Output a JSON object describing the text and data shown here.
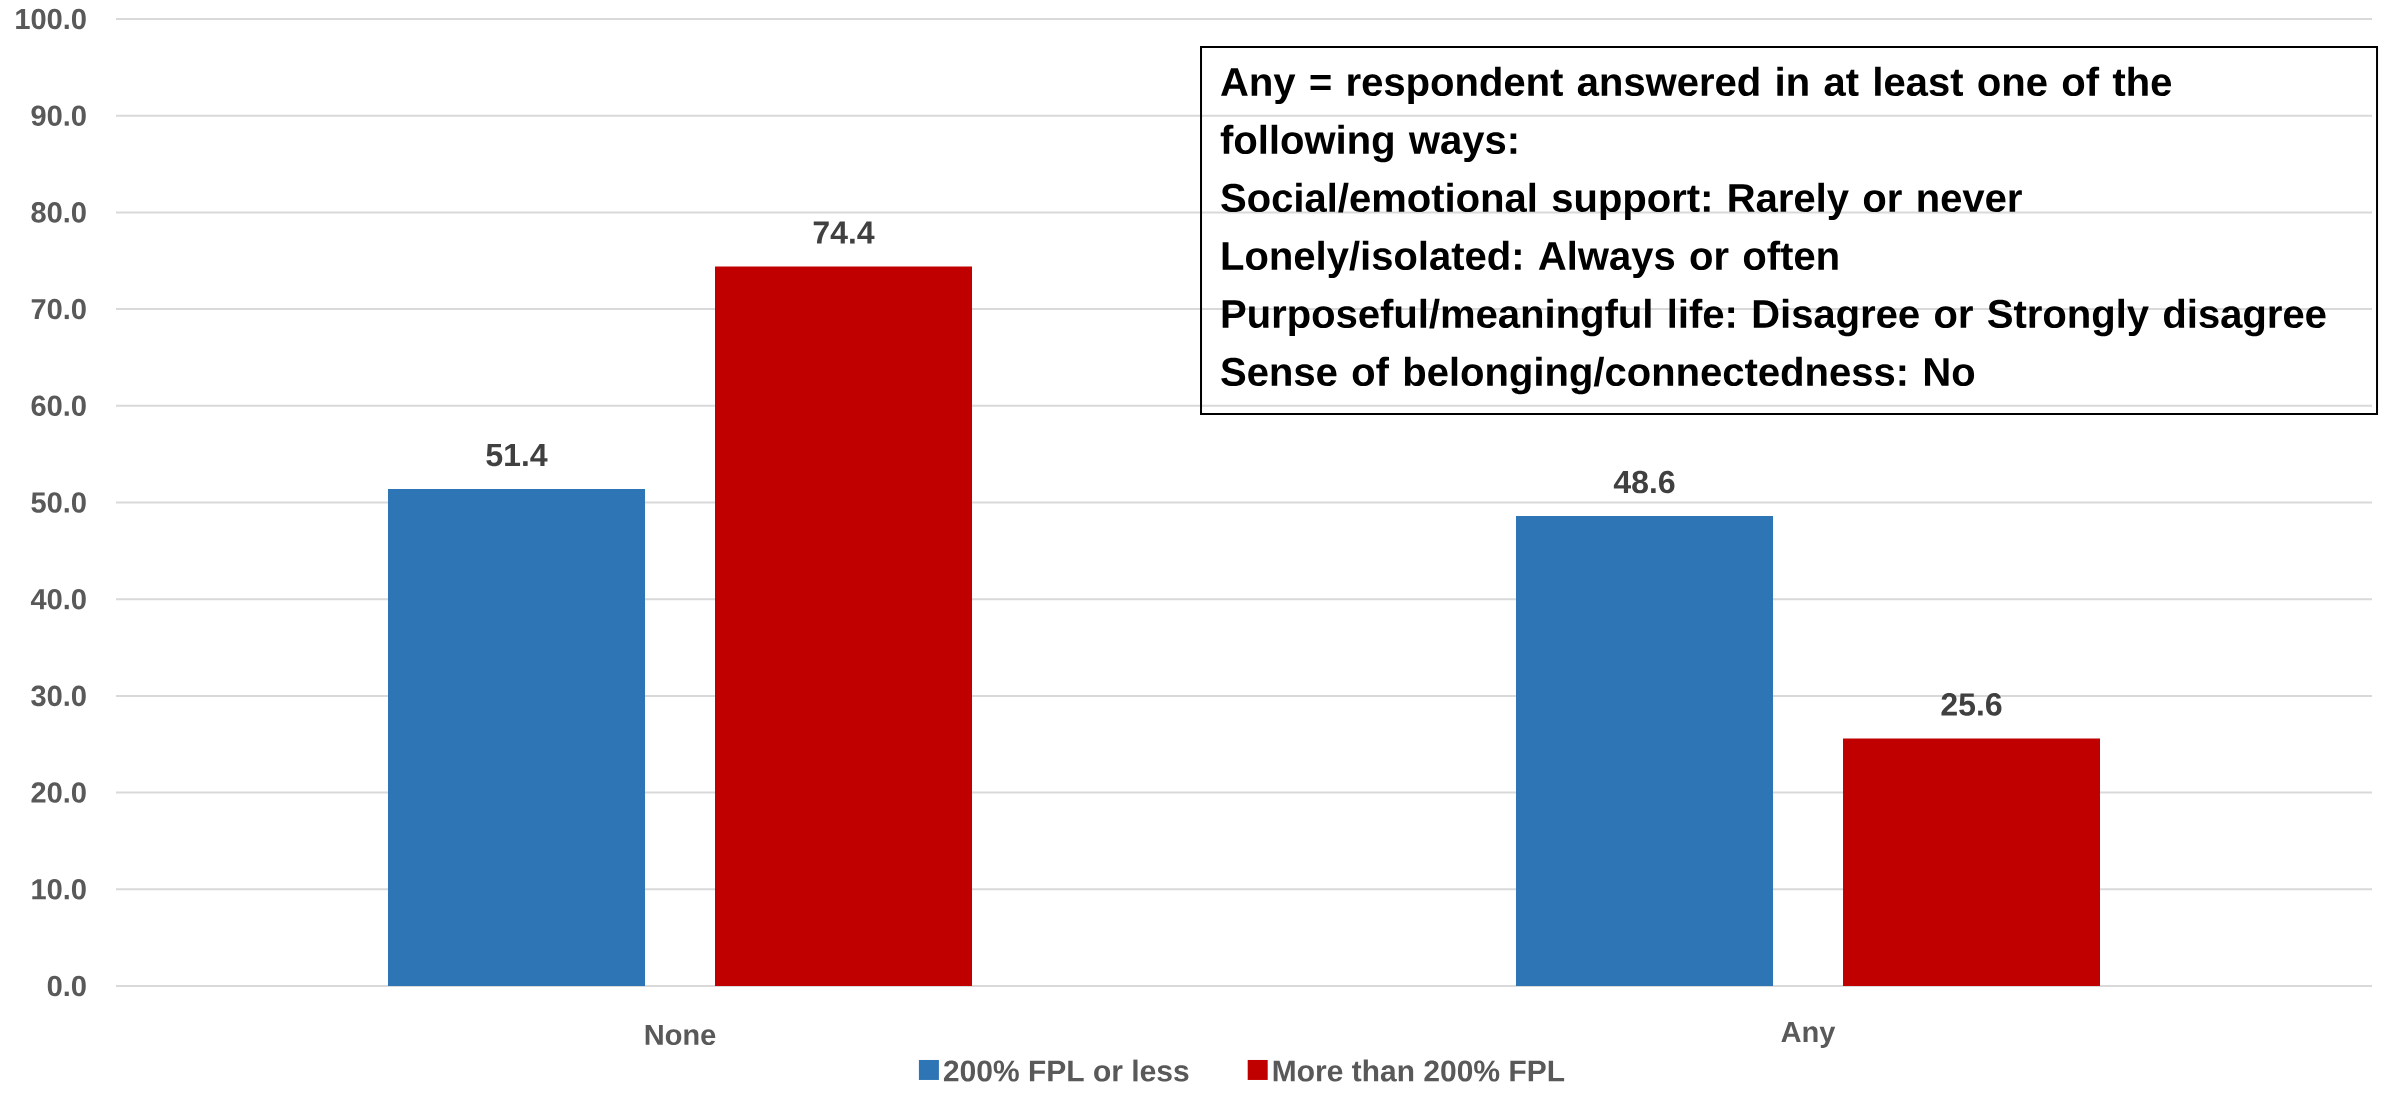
{
  "chart_data": {
    "type": "bar",
    "categories": [
      "None",
      "Any"
    ],
    "series": [
      {
        "name": "200% FPL or less",
        "color": "#2e75b6",
        "values": [
          51.4,
          48.6
        ]
      },
      {
        "name": "More than 200% FPL",
        "color": "#c00000",
        "values": [
          74.4,
          25.6
        ]
      }
    ],
    "ylim": [
      0,
      100
    ],
    "yticks": [
      {
        "value": 0,
        "label": "0.0"
      },
      {
        "value": 10,
        "label": "10.0"
      },
      {
        "value": 20,
        "label": "20.0"
      },
      {
        "value": 30,
        "label": "30.0"
      },
      {
        "value": 40,
        "label": "40.0"
      },
      {
        "value": 50,
        "label": "50.0"
      },
      {
        "value": 60,
        "label": "60.0"
      },
      {
        "value": 70,
        "label": "70.0"
      },
      {
        "value": 80,
        "label": "80.0"
      },
      {
        "value": 90,
        "label": "90.0"
      },
      {
        "value": 100,
        "label": "100.0"
      }
    ],
    "grid": "y",
    "legend": "bottom",
    "data_labels": true,
    "annotations": [
      "Any = respondent answered in at least one of the following ways:",
      "Social/emotional support: Rarely or never",
      "Lonely/isolated: Always or often",
      "Purposeful/meaningful life: Disagree or Strongly disagree",
      "Sense of belonging/connectedness: No"
    ]
  }
}
